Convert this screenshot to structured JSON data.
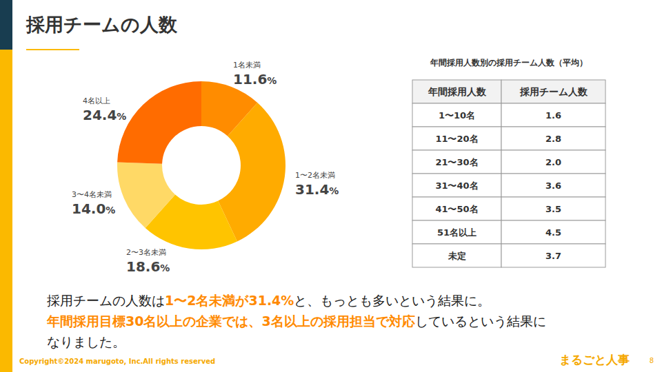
{
  "title": "採用チームの人数",
  "chart_data": {
    "type": "pie",
    "categories": [
      "1名未満",
      "1〜2名未満",
      "2〜3名未満",
      "3〜4名未満",
      "4名以上"
    ],
    "values": [
      11.6,
      31.4,
      18.6,
      14.0,
      24.4
    ],
    "value_labels": [
      "11.6%",
      "31.4%",
      "18.6%",
      "14.0%",
      "24.4%"
    ],
    "colors": [
      "#ff8c00",
      "#ffab00",
      "#ffc400",
      "#ffd966",
      "#ff6c00"
    ],
    "data_labels": true
  },
  "table": {
    "title": "年間採用人数別の採用チーム人数（平均）",
    "header": [
      "年間採用人数",
      "採用チーム人数"
    ],
    "rows": [
      [
        "1〜10名",
        "1.6"
      ],
      [
        "11〜20名",
        "2.8"
      ],
      [
        "21〜30名",
        "2.0"
      ],
      [
        "31〜40名",
        "3.6"
      ],
      [
        "41〜50名",
        "3.5"
      ],
      [
        "51名以上",
        "4.5"
      ],
      [
        "未定",
        "3.7"
      ]
    ]
  },
  "summary": [
    [
      {
        "text": "採用チームの人数は",
        "highlight": false
      },
      {
        "text": "1〜2名未満が31.4%",
        "highlight": true
      },
      {
        "text": "と、もっとも多いという結果に。",
        "highlight": false
      }
    ],
    [
      {
        "text": "年間採用目標30名以上の企業では、3名以上の採用担当で対応",
        "highlight": true
      },
      {
        "text": "しているという結果に",
        "highlight": false
      }
    ],
    [
      {
        "text": "なりました。",
        "highlight": false
      }
    ]
  ],
  "footer": {
    "copyright": "Copyright©2024 marugoto, Inc.All rights reserved",
    "logo": "まるごと人事",
    "page": "8"
  }
}
